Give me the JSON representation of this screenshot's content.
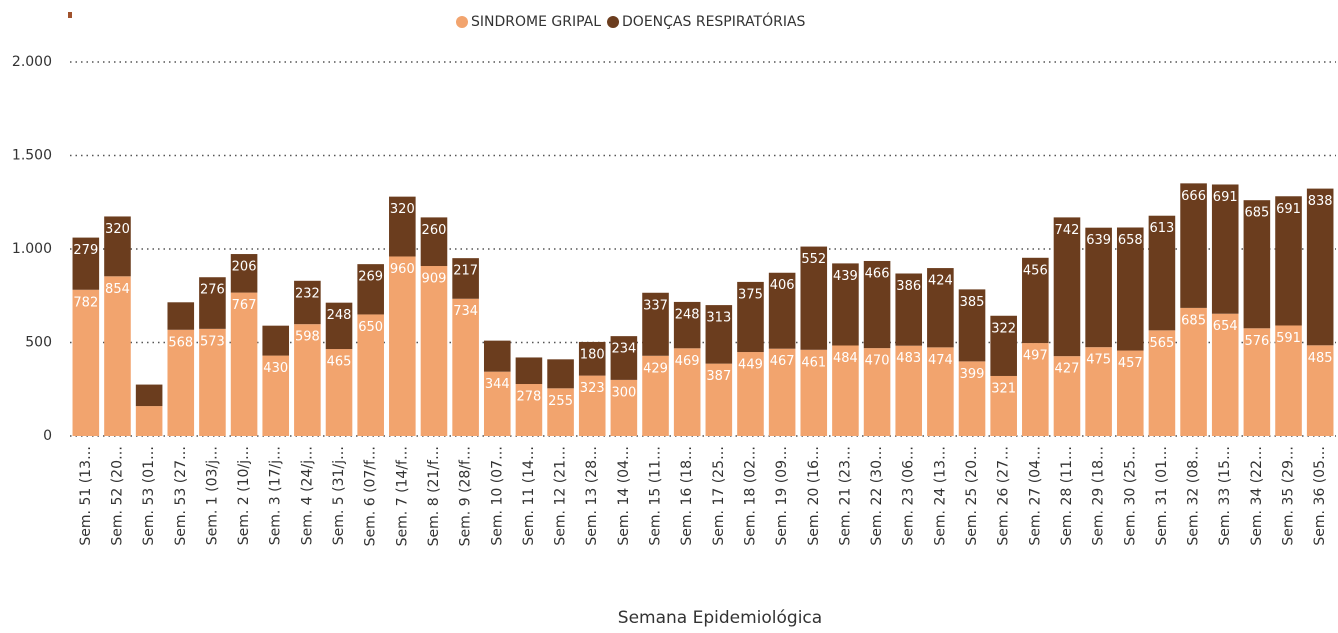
{
  "chart_data": {
    "type": "stacked_bar",
    "x_label": "Semana Epidemiológica",
    "categories": [
      "Sem. 51 (13…",
      "Sem. 52 (20…",
      "Sem. 53 (01…",
      "Sem. 53 (27…",
      "Sem. 1 (03/j…",
      "Sem. 2 (10/j…",
      "Sem. 3 (17/j…",
      "Sem. 4 (24/j…",
      "Sem. 5 (31/j…",
      "Sem. 6 (07/f…",
      "Sem. 7 (14/f…",
      "Sem. 8 (21/f…",
      "Sem. 9 (28/f…",
      "Sem. 10 (07…",
      "Sem. 11 (14…",
      "Sem. 12 (21…",
      "Sem. 13 (28…",
      "Sem. 14 (04…",
      "Sem. 15 (11…",
      "Sem. 16 (18…",
      "Sem. 17 (25…",
      "Sem. 18 (02…",
      "Sem. 19 (09…",
      "Sem. 20 (16…",
      "Sem. 21 (23…",
      "Sem. 22 (30…",
      "Sem. 23 (06…",
      "Sem. 24 (13…",
      "Sem. 25 (20…",
      "Sem. 26 (27…",
      "Sem. 27 (04…",
      "Sem. 28 (11…",
      "Sem. 29 (18…",
      "Sem. 30 (25…",
      "Sem. 31 (01…",
      "Sem. 32 (08…",
      "Sem. 33 (15…",
      "Sem. 34 (22…",
      "Sem. 35 (29…",
      "Sem. 36 (05…"
    ],
    "series": [
      {
        "name": "SINDROME GRIPAL",
        "color": "#f2a46e",
        "values": [
          782,
          854,
          160,
          568,
          573,
          767,
          430,
          598,
          465,
          650,
          960,
          909,
          734,
          344,
          278,
          255,
          323,
          300,
          429,
          469,
          387,
          449,
          467,
          461,
          484,
          470,
          483,
          474,
          399,
          321,
          497,
          427,
          475,
          457,
          565,
          685,
          654,
          576,
          591,
          485
        ],
        "value_labels": [
          "782",
          "854",
          null,
          "568",
          "573",
          "767",
          "430",
          "598",
          "465",
          "650",
          "960",
          "909",
          "734",
          "344",
          "278",
          "255",
          "323",
          "300",
          "429",
          "469",
          "387",
          "449",
          "467",
          "461",
          "484",
          "470",
          "483",
          "474",
          "399",
          "321",
          "497",
          "427",
          "475",
          "457",
          "565",
          "685",
          "654",
          "576",
          "591",
          "485"
        ]
      },
      {
        "name": "DOENÇAS RESPIRATÓRIAS",
        "color": "#6b3d1e",
        "values": [
          279,
          320,
          115,
          147,
          276,
          206,
          160,
          232,
          248,
          269,
          320,
          260,
          217,
          166,
          142,
          155,
          180,
          234,
          337,
          248,
          313,
          375,
          406,
          552,
          439,
          466,
          386,
          424,
          385,
          322,
          456,
          742,
          639,
          658,
          613,
          666,
          691,
          685,
          691,
          838
        ],
        "value_labels": [
          "279",
          "320",
          null,
          null,
          "276",
          "206",
          null,
          "232",
          "248",
          "269",
          "320",
          "260",
          "217",
          null,
          null,
          null,
          "180",
          "234",
          "337",
          "248",
          "313",
          "375",
          "406",
          "552",
          "439",
          "466",
          "386",
          "424",
          "385",
          "322",
          "456",
          "742",
          "639",
          "658",
          "613",
          "666",
          "691",
          "685",
          "691",
          "838"
        ]
      }
    ],
    "ylim": [
      0,
      2000
    ],
    "yticks": [
      0,
      {
        "value": 500,
        "label": "500"
      },
      {
        "value": 1000,
        "label": "1.000"
      },
      {
        "value": 1500,
        "label": "1.500"
      },
      {
        "value": 2000,
        "label": "2.000"
      }
    ],
    "grid": true
  }
}
